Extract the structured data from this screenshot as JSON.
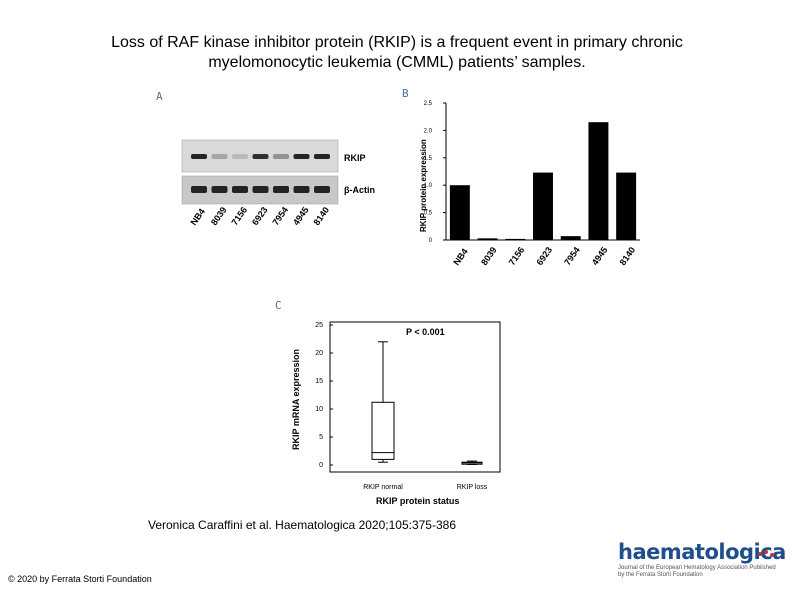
{
  "title": "Loss of RAF kinase inhibitor protein (RKIP) is a frequent event in primary chronic myelomonocytic leukemia (CMML) patients’ samples.",
  "panels": {
    "a": "A",
    "b": "B",
    "c": "C"
  },
  "blot": {
    "samples": [
      "NB4",
      "8039",
      "7156",
      "6923",
      "7954",
      "4945",
      "8140"
    ],
    "rows": [
      "RKIP",
      "β-Actin"
    ]
  },
  "citation": "Veronica Caraffini et al. Haematologica 2020;105:375-386",
  "copyright": "© 2020 by Ferrata Storti Foundation",
  "logo": {
    "name": "haematologica",
    "subtitle": "Journal of the European Hematology Association Published by the Ferrata Storti Foundation"
  },
  "chart_data": [
    {
      "type": "bar",
      "panel": "B",
      "categories": [
        "NB4",
        "8039",
        "7156",
        "6923",
        "7954",
        "4945",
        "8140"
      ],
      "values": [
        1.0,
        0.03,
        0.02,
        1.23,
        0.07,
        2.15,
        1.23
      ],
      "xlabel": "",
      "ylabel": "RKIP protein expression",
      "ylim": [
        0,
        2.5
      ],
      "yticks": [
        "0",
        "0.5",
        "1.0",
        "1.5",
        "2.0",
        "2.5"
      ]
    },
    {
      "type": "box",
      "panel": "C",
      "categories": [
        "RKIP normal",
        "RKIP loss"
      ],
      "boxes": [
        {
          "min": 0.5,
          "q1": 1.0,
          "median": 2.2,
          "q3": 11.2,
          "max": 22.0
        },
        {
          "min": 0.1,
          "q1": 0.2,
          "median": 0.4,
          "q3": 0.5,
          "max": 0.7
        }
      ],
      "annotation": "P < 0.001",
      "xlabel": "RKIP protein status",
      "ylabel": "RKIP mRNA expression",
      "ylim": [
        0,
        25
      ],
      "yticks": [
        "0",
        "5",
        "10",
        "15",
        "20",
        "25"
      ]
    }
  ]
}
